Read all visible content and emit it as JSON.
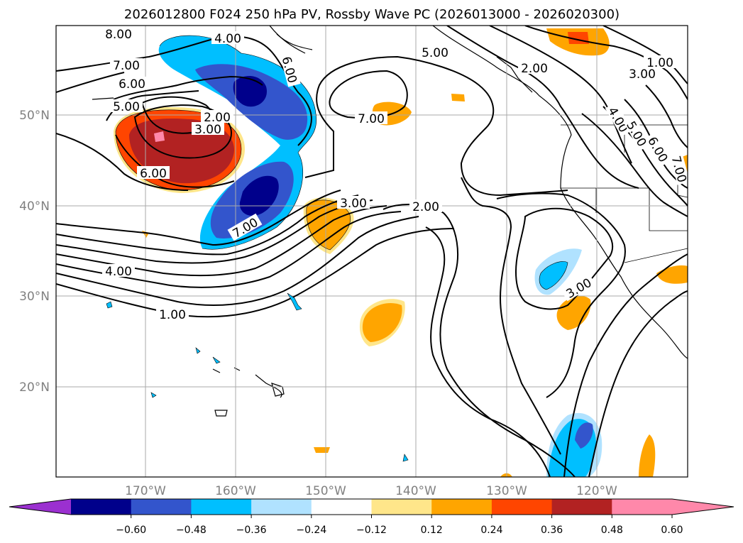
{
  "figure": {
    "title": "2026012800 F024 250 hPa PV, Rossby Wave PC (2026013000 - 2026020300)"
  },
  "axes": {
    "lat_labels": [
      "50°N",
      "40°N",
      "30°N",
      "20°N"
    ],
    "lon_labels": [
      "170°W",
      "160°W",
      "150°W",
      "140°W",
      "130°W",
      "120°W"
    ]
  },
  "colorbar": {
    "tick_labels": [
      "−0.60",
      "−0.48",
      "−0.36",
      "−0.24",
      "−0.12",
      "0.12",
      "0.24",
      "0.36",
      "0.48",
      "0.60"
    ],
    "colors": {
      "under": "#9b30d0",
      "bins": [
        "#00008b",
        "#3355cc",
        "#00bfff",
        "#b0e2ff",
        "#ffffff",
        "#ffe68a",
        "#ffa500",
        "#ff4500",
        "#b22222",
        "#ff88aa"
      ],
      "over": "#ff88aa"
    }
  },
  "contour_labels": {
    "pv_8": "8.00",
    "pv_4a": "4.00",
    "pv_7a": "7.00",
    "pv_6a": "6.00",
    "pv_5a": "5.00",
    "pv_2a": "2.00",
    "pv_3a": "3.00",
    "pv_6b": "6.00",
    "pv_6c": "6.00",
    "pv_7b": "7.00",
    "pv_5b": "5.00",
    "pv_2b": "2.00",
    "pv_1a": "1.00",
    "pv_3b": "3.00",
    "pv_4b": "4.00",
    "pv_5c": "5.00",
    "pv_6d": "6.00",
    "pv_7c": "7.00",
    "pv_3c": "3.00",
    "pv_2c": "2.00",
    "pv_7d": "7.00",
    "pv_4c": "4.00",
    "pv_1b": "1.00",
    "pv_3d": "3.00"
  }
}
